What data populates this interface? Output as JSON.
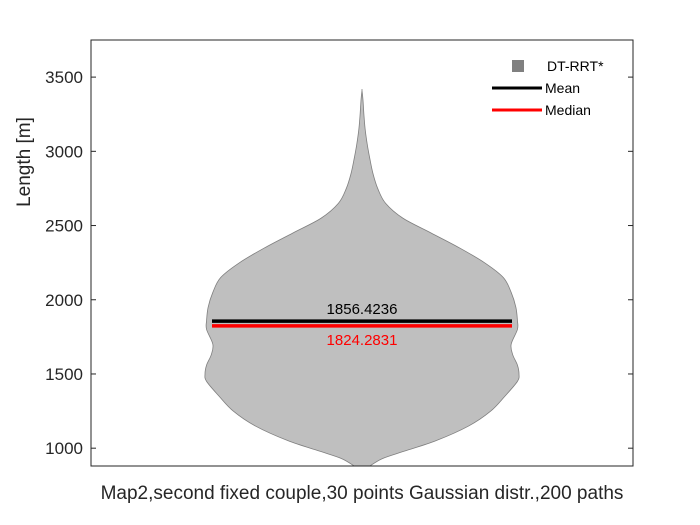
{
  "chart_data": {
    "type": "violin",
    "xlabel": "Map2,second fixed couple,30 points Gaussian distr.,200 paths",
    "ylabel": "Length [m]",
    "ylim": [
      880,
      3750
    ],
    "yticks": [
      1000,
      1500,
      2000,
      2500,
      3000,
      3500
    ],
    "grid": false,
    "legend_position": "top-right",
    "legend": [
      {
        "label": "DT-RRT*",
        "kind": "patch",
        "color": "#808080"
      },
      {
        "label": "Mean",
        "kind": "line",
        "color": "#000000"
      },
      {
        "label": "Median",
        "kind": "line",
        "color": "#ff0000"
      }
    ],
    "series": [
      {
        "name": "DT-RRT*",
        "fill_color": "#bfbfbf",
        "edge_color": "#7f7f7f",
        "mean": 1856.4236,
        "median": 1824.2831,
        "mean_label": "1856.4236",
        "median_label": "1824.2831",
        "mean_color": "#000000",
        "median_color": "#ff0000",
        "density_profile": [
          {
            "y": 880,
            "w": 0.05
          },
          {
            "y": 930,
            "w": 0.13
          },
          {
            "y": 980,
            "w": 0.27
          },
          {
            "y": 1050,
            "w": 0.47
          },
          {
            "y": 1150,
            "w": 0.68
          },
          {
            "y": 1250,
            "w": 0.82
          },
          {
            "y": 1350,
            "w": 0.91
          },
          {
            "y": 1450,
            "w": 0.99
          },
          {
            "y": 1500,
            "w": 1.0
          },
          {
            "y": 1560,
            "w": 0.99
          },
          {
            "y": 1630,
            "w": 0.96
          },
          {
            "y": 1700,
            "w": 0.95
          },
          {
            "y": 1800,
            "w": 0.99
          },
          {
            "y": 1860,
            "w": 0.99
          },
          {
            "y": 1950,
            "w": 0.98
          },
          {
            "y": 2050,
            "w": 0.95
          },
          {
            "y": 2150,
            "w": 0.9
          },
          {
            "y": 2250,
            "w": 0.78
          },
          {
            "y": 2350,
            "w": 0.62
          },
          {
            "y": 2450,
            "w": 0.44
          },
          {
            "y": 2550,
            "w": 0.26
          },
          {
            "y": 2650,
            "w": 0.15
          },
          {
            "y": 2750,
            "w": 0.1
          },
          {
            "y": 2850,
            "w": 0.07
          },
          {
            "y": 2950,
            "w": 0.05
          },
          {
            "y": 3050,
            "w": 0.033
          },
          {
            "y": 3150,
            "w": 0.02
          },
          {
            "y": 3250,
            "w": 0.012
          },
          {
            "y": 3350,
            "w": 0.006
          },
          {
            "y": 3410,
            "w": 0.0
          }
        ]
      }
    ]
  }
}
